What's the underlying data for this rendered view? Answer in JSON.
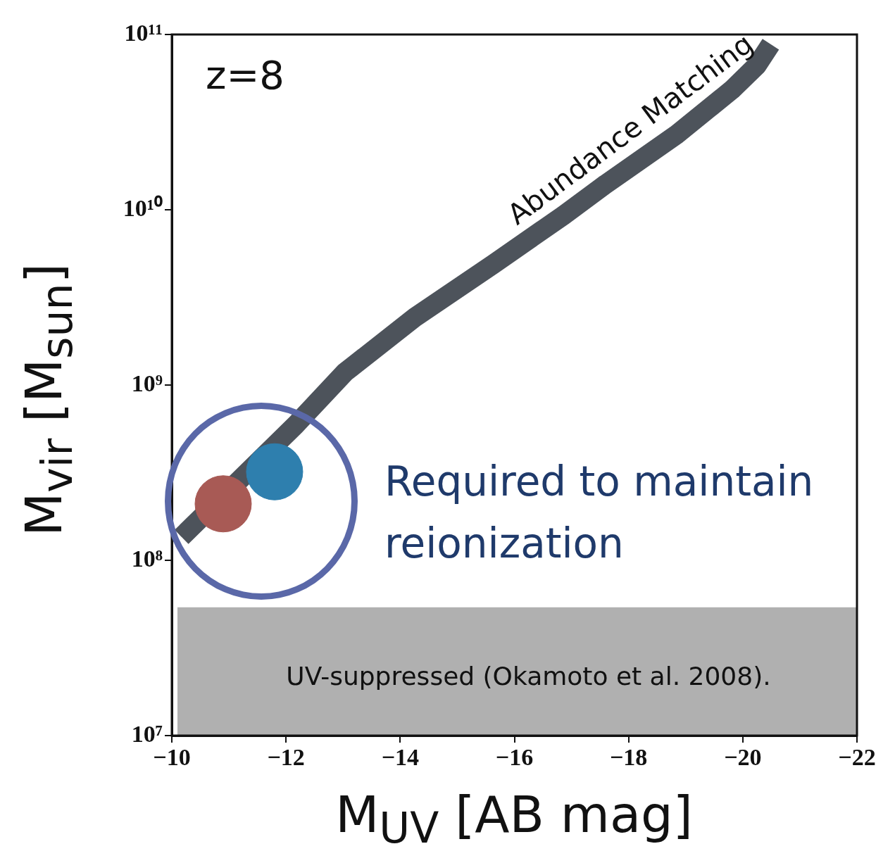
{
  "chart_data": {
    "type": "line",
    "xlabel": "M$_{UV}$ [AB mag]",
    "ylabel": "M$_{vir}$  [M$_{sun}$]",
    "xlim": [
      -10,
      -22
    ],
    "xticks": [
      {
        "value": -10,
        "label": "−10"
      },
      {
        "value": -12,
        "label": "−12"
      },
      {
        "value": -14,
        "label": "−14"
      },
      {
        "value": -16,
        "label": "−16"
      },
      {
        "value": -18,
        "label": "−18"
      },
      {
        "value": -20,
        "label": "−20"
      },
      {
        "value": -22,
        "label": "−22"
      }
    ],
    "ylim": [
      10000000.0,
      100000000000.0
    ],
    "yticks": [
      {
        "value": 10000000.0,
        "label": "10⁷"
      },
      {
        "value": 100000000.0,
        "label": "10⁸"
      },
      {
        "value": 1000000000.0,
        "label": "10⁹"
      },
      {
        "value": 10000000000.0,
        "label": "10¹⁰"
      },
      {
        "value": 100000000000.0,
        "label": "10¹¹"
      }
    ],
    "log": "y",
    "grid": false,
    "legend": false,
    "series": [
      {
        "name": "Abundance Matching",
        "color": "#4d535b",
        "marker": "none",
        "x": [
          -10.17,
          -12.17,
          -13.03,
          -14.27,
          -15.63,
          -16.86,
          -17.6,
          -18.83,
          -19.81,
          -20.25,
          -20.49
        ],
        "values": [
          136000000.0,
          593000000.0,
          1180000000.0,
          2450000000.0,
          4890000000.0,
          9290000000.0,
          14000000000.0,
          26700000000.0,
          48400000000.0,
          66800000000.0,
          87900000000.0
        ]
      },
      {
        "type": "scatter",
        "marker": "circle",
        "x": [
          -10.9,
          -11.8
        ],
        "values": [
          210000000.0,
          320000000.0
        ],
        "colors": [
          "#a85a55",
          "#2e7fae"
        ]
      }
    ],
    "bands": [
      {
        "axis": "y",
        "from": 10000000.0,
        "to": 54000000.0,
        "color": "#b0b0b0",
        "label": "UV-suppressed (Okamoto et al. 2008)."
      }
    ],
    "annotations": [
      "z=8",
      "Required to maintain reionization"
    ]
  }
}
